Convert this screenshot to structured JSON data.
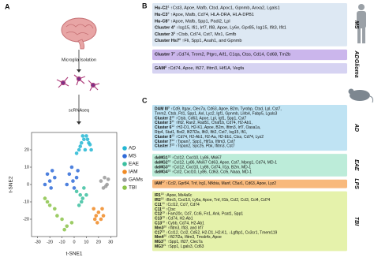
{
  "panel_a": {
    "label": "A",
    "steps": [
      "Microglia Isolation",
      "scRNAseq"
    ]
  },
  "chart_data": {
    "type": "scatter",
    "xlabel": "t-SNE1",
    "ylabel": "t-SNE2",
    "xlim": [
      -35,
      35
    ],
    "ylim": [
      -30,
      30
    ],
    "xticks": [
      -30,
      -20,
      -10,
      0,
      10,
      20,
      30
    ],
    "yticks": [
      -20,
      -10,
      0,
      10,
      20
    ],
    "legend": "right",
    "series": [
      {
        "name": "AD",
        "color": "#25b7d3",
        "x": [
          2,
          5,
          8,
          10,
          12,
          14,
          6,
          9,
          11,
          4,
          7,
          13
        ],
        "y": [
          18,
          22,
          26,
          28,
          24,
          20,
          24,
          20,
          26,
          20,
          28,
          23
        ]
      },
      {
        "name": "MS",
        "color": "#2f6bd8",
        "x": [
          -22,
          -20,
          -18,
          -24,
          -16,
          -19,
          -4,
          -1,
          2,
          -6,
          0,
          3,
          -2
        ],
        "y": [
          6,
          2,
          8,
          0,
          4,
          -2,
          6,
          2,
          4,
          0,
          -2,
          8,
          10
        ]
      },
      {
        "name": "EAE",
        "color": "#3cbfa0",
        "x": [
          2,
          5,
          8,
          6,
          10,
          4,
          7
        ],
        "y": [
          -4,
          -6,
          -2,
          -10,
          -6,
          -12,
          -8
        ]
      },
      {
        "name": "IAM",
        "color": "#f08a24",
        "x": [
          16,
          18,
          20,
          22,
          24,
          19,
          23,
          17
        ],
        "y": [
          -14,
          -18,
          -16,
          -20,
          -18,
          -22,
          -14,
          -20
        ]
      },
      {
        "name": "GAMs",
        "color": "#9a9a9a",
        "x": [
          22,
          25,
          27,
          24,
          28,
          26
        ],
        "y": [
          2,
          4,
          0,
          -2,
          3,
          -1
        ]
      },
      {
        "name": "TBI",
        "color": "#8bc34a",
        "x": [
          -24,
          -20,
          -16,
          -10,
          -6,
          -2,
          -14,
          -22,
          -8
        ],
        "y": [
          -8,
          -12,
          -14,
          -20,
          -24,
          -22,
          -18,
          -10,
          -26
        ]
      }
    ]
  },
  "panel_b": {
    "label": "B",
    "groups": [
      {
        "tag": "MS",
        "color": "#8fa9c8",
        "fill": "#dde8f3",
        "lines": [
          {
            "label": "Hu-C2",
            "ref": "1",
            "text": "↑Cst3, Apoe, Mafb, Ctsd, Apoc1, Gpnmb, Anxa2, Lgals1"
          },
          {
            "label": "Hu-C3",
            "ref": "2",
            "text": "↑Apoe, Mafb, Cd74, HLA-DRA, HLA-DPB1"
          },
          {
            "label": "Hu-C8",
            "ref": "3",
            "text": "↑Apoe, Mafb, Spp1, Padi2, Lpl"
          },
          {
            "label": "Cluster 4",
            "ref": "4",
            "text": "↑Isg15, Ifi1, Irf7, Ifi8, Apoe, Ly6e, Gpr85, Isg15, Ifit3, Ifit1"
          },
          {
            "label": "Cluster 3",
            "ref": "5",
            "text": "↑Ctsb, Cd74, Cst7, Mx1, Gmfb"
          },
          {
            "label": "Cluster Hs7",
            "ref": "6",
            "text": "↑Fli, Spp1, Asah1, and Gpnmb"
          }
        ]
      },
      {
        "tag": "AD",
        "color": "#7b4fc9",
        "fill": "#cbb6ec",
        "lines": [
          {
            "label": "Cluster 7",
            "ref": "7",
            "text": "↓Cd74, Trem2, Ptgrc, Aif1, C1qa, Ctss, Cd14, Cd68, Tm2b"
          }
        ]
      },
      {
        "tag": "Glioma",
        "color": "#5a4fc9",
        "fill": "#d6d3f2",
        "lines": [
          {
            "label": "GAM",
            "ref": "8",
            "text": "↑Cd74, Apoe, Ifi27, Ifitm3, Hif1A, Vegfa"
          }
        ]
      }
    ]
  },
  "panel_c": {
    "label": "C",
    "groups": [
      {
        "tag": "AD",
        "color": "#2a7fc9",
        "fill": "#bfe3f3",
        "lines": [
          {
            "label": "DAM III",
            "ref": "9",
            "text": "↑Cd9, Itgax, Clec7a, Cd63, Apoe, B2m, Tyrobp, Ctsd, Lpl, Cst7,"
          },
          {
            "text": "Trem2, Ctsb, Ftl1, Spp1, Axl, Lyz2, Igf1, Gpnmb, Lilrb4, Fabp5, Lgals3"
          },
          {
            "label": "Cluster 2",
            "ref": "10",
            "text": "↑Ctsb, Cd63, Apoe, Lpl, Igf1, Spp1, Cst7"
          },
          {
            "label": "Cluster 3",
            "ref": "11",
            "text": "↑Ifit2, Ran2, Rad51, Chaf1b, Cd74, H2-Ab1,"
          },
          {
            "label": "Cluster 6",
            "ref": "12",
            "text": "↑H2-D1, H2-K1, Apoe, B2m, Ifitm3, Irf7, Oasa1a,"
          },
          {
            "text": "Rtp4, Stat1, Bst2, Ifi27l2a, Ifit3, Ifit2, Cst7, Isg15, Ifi1,"
          },
          {
            "label": "Cluster 8",
            "ref": "13",
            "text": "↑Cd74, H2-Ab1, H2-Aa, H2-Eb1, Ctss, Cd74, Lyz2"
          },
          {
            "label": "Cluster 7",
            "ref": "14",
            "text": "↑Tspan7, Spp1, Hif1a, Ifitm3, Cst7"
          },
          {
            "label": "Cluster 7",
            "ref": "15",
            "text": "↑Tspan2, Spc25, Pbk, Ifitm3, Cst7"
          }
        ]
      },
      {
        "tag": "EAE",
        "color": "#3aa36a",
        "fill": "#bcecd9",
        "lines": [
          {
            "label": "daMG1",
            "ref": "16",
            "text": "↑Ccl12, Cxcl10, Ly86, Mki67"
          },
          {
            "label": "daMG2",
            "ref": "16",
            "text": "↑Ccl12, Ly86, Mki67 Cd63, Apoe, Cst7, Mpeg1, Cd74, MD-1"
          },
          {
            "label": "daMG3",
            "ref": "16",
            "text": "↑Ccl12, Cxcl10, Ly86, Cd74, Il1a, B2m, MD-1"
          },
          {
            "label": "daMG4",
            "ref": "16",
            "text": "↑Ccl2, Cxcl10, Ly86, Cd63, Ccl5, Naaa, MD-1"
          }
        ]
      },
      {
        "tag": "LPS",
        "color": "#e8892c",
        "fill": "#f8b97c",
        "lines": [
          {
            "label": "IAM",
            "ref": "17",
            "text": "↑Ccl2, Gpr84, Tnf, Irg1, Nfkbia, Manf, C5ar1, Cd63, Apoe, Lyz2"
          }
        ]
      },
      {
        "tag": "TBI",
        "color": "#7cb342",
        "fill": "#e5f2ab",
        "lines": [
          {
            "label": "IR1",
            "ref": "18",
            "text": "↑Apoe, Ms4a6c"
          },
          {
            "label": "IR2",
            "ref": "18",
            "text": "↑Birc5, Cxcl10, Ly6a, Apoe, Tnf, Il1b, Ccl2, Ccl3, Ccl4, Cd74"
          },
          {
            "label": "C11",
            "ref": "19",
            "text": "↑Ccl12, Ccl7, Cd74"
          },
          {
            "label": "C11",
            "ref": "19",
            "text": "↑Ctsc"
          },
          {
            "label": "C12",
            "ref": "19",
            "text": "↑Fam20c, Cd7, Ccl6, Fn1, Ank, Psat1, Spp1"
          },
          {
            "label": "C13",
            "ref": "19",
            "text": "↑Cd74, H2-Ab1"
          },
          {
            "label": "C13",
            "ref": "19",
            "text": "↑Cybb, Cd74, H2-Ab1"
          },
          {
            "label": "Mm3",
            "ref": "20",
            "text": "↑Ifitm3, Ifit3, and Irf7"
          },
          {
            "label": "C17",
            "ref": "20",
            "text": "↑Ccl12, Ccl2, Cd52, H2-D1, H2-K1, ↓Lgfbp1, Cx3cr1, Tmem119"
          },
          {
            "label": "Mm4",
            "ref": "20",
            "text": "↑Ifi27l2a, Ifitm3, Tmsb4x, Apoe"
          },
          {
            "label": "MG3",
            "ref": "21",
            "text": "↑Spp1, Ifi27, Clec7a"
          },
          {
            "label": "MG3",
            "ref": "21",
            "text": "↑Spp1, Lgals3, Cd63"
          }
        ]
      }
    ]
  }
}
